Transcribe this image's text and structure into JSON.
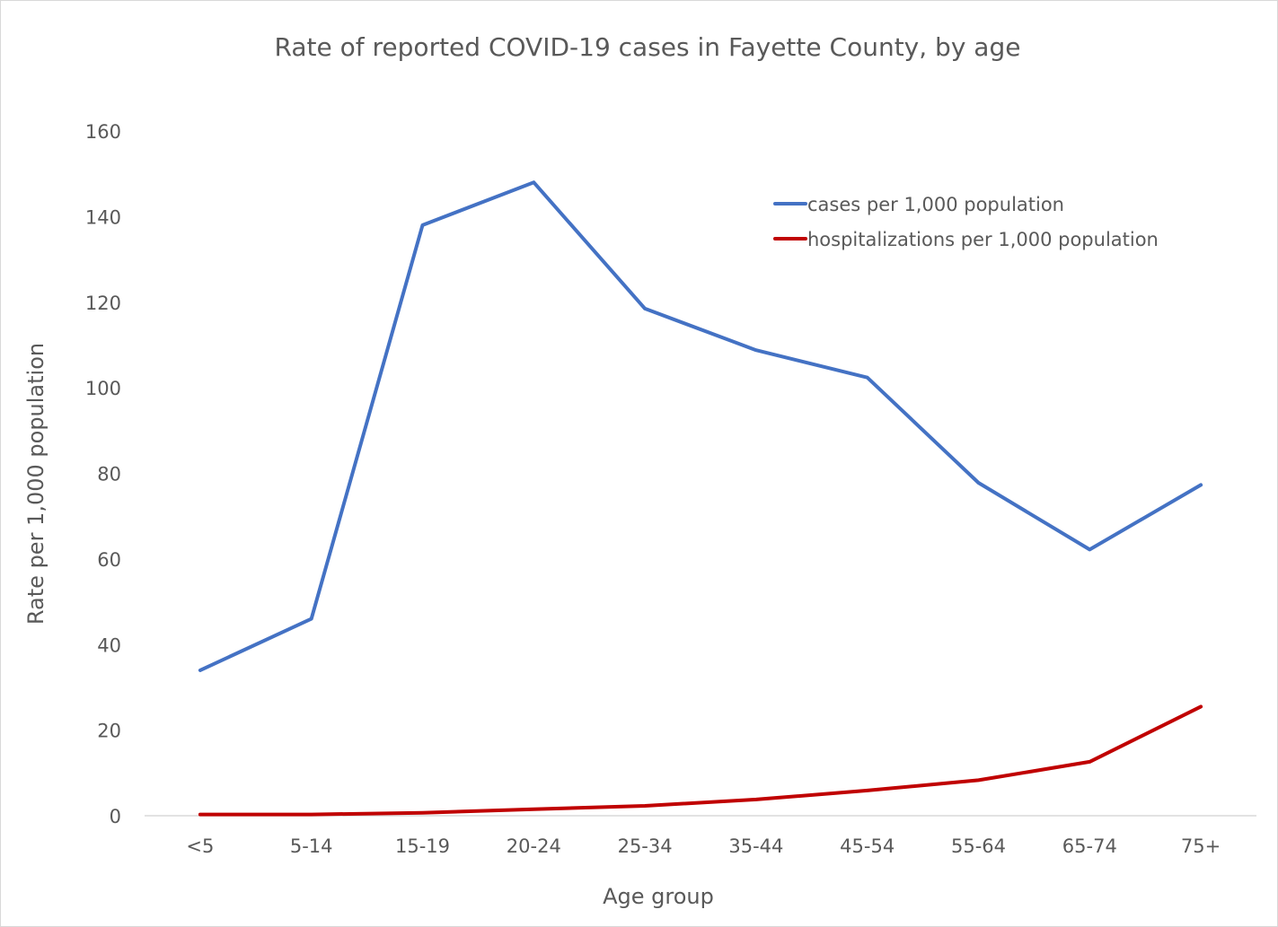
{
  "chart_data": {
    "type": "line",
    "title": "Rate of reported COVID-19 cases in Fayette County, by age",
    "xlabel": "Age group",
    "ylabel": "Rate per 1,000 population",
    "categories": [
      "<5",
      "5-14",
      "15-19",
      "20-24",
      "25-34",
      "35-44",
      "45-54",
      "55-64",
      "65-74",
      "75+"
    ],
    "series": [
      {
        "name": "cases per 1,000 population",
        "color": "#4472c4",
        "values": [
          34,
          46,
          138,
          148,
          118.5,
          108.8,
          102.4,
          77.8,
          62.2,
          77.3
        ]
      },
      {
        "name": "hospitalizations per 1,000 population",
        "color": "#c00000",
        "values": [
          0.3,
          0.3,
          0.7,
          1.5,
          2.3,
          3.8,
          5.9,
          8.3,
          12.6,
          25.5
        ]
      }
    ],
    "ylim": [
      0,
      160
    ],
    "yticks": [
      0,
      20,
      40,
      60,
      80,
      100,
      120,
      140,
      160
    ],
    "grid": false,
    "legend_position": "top-right"
  }
}
